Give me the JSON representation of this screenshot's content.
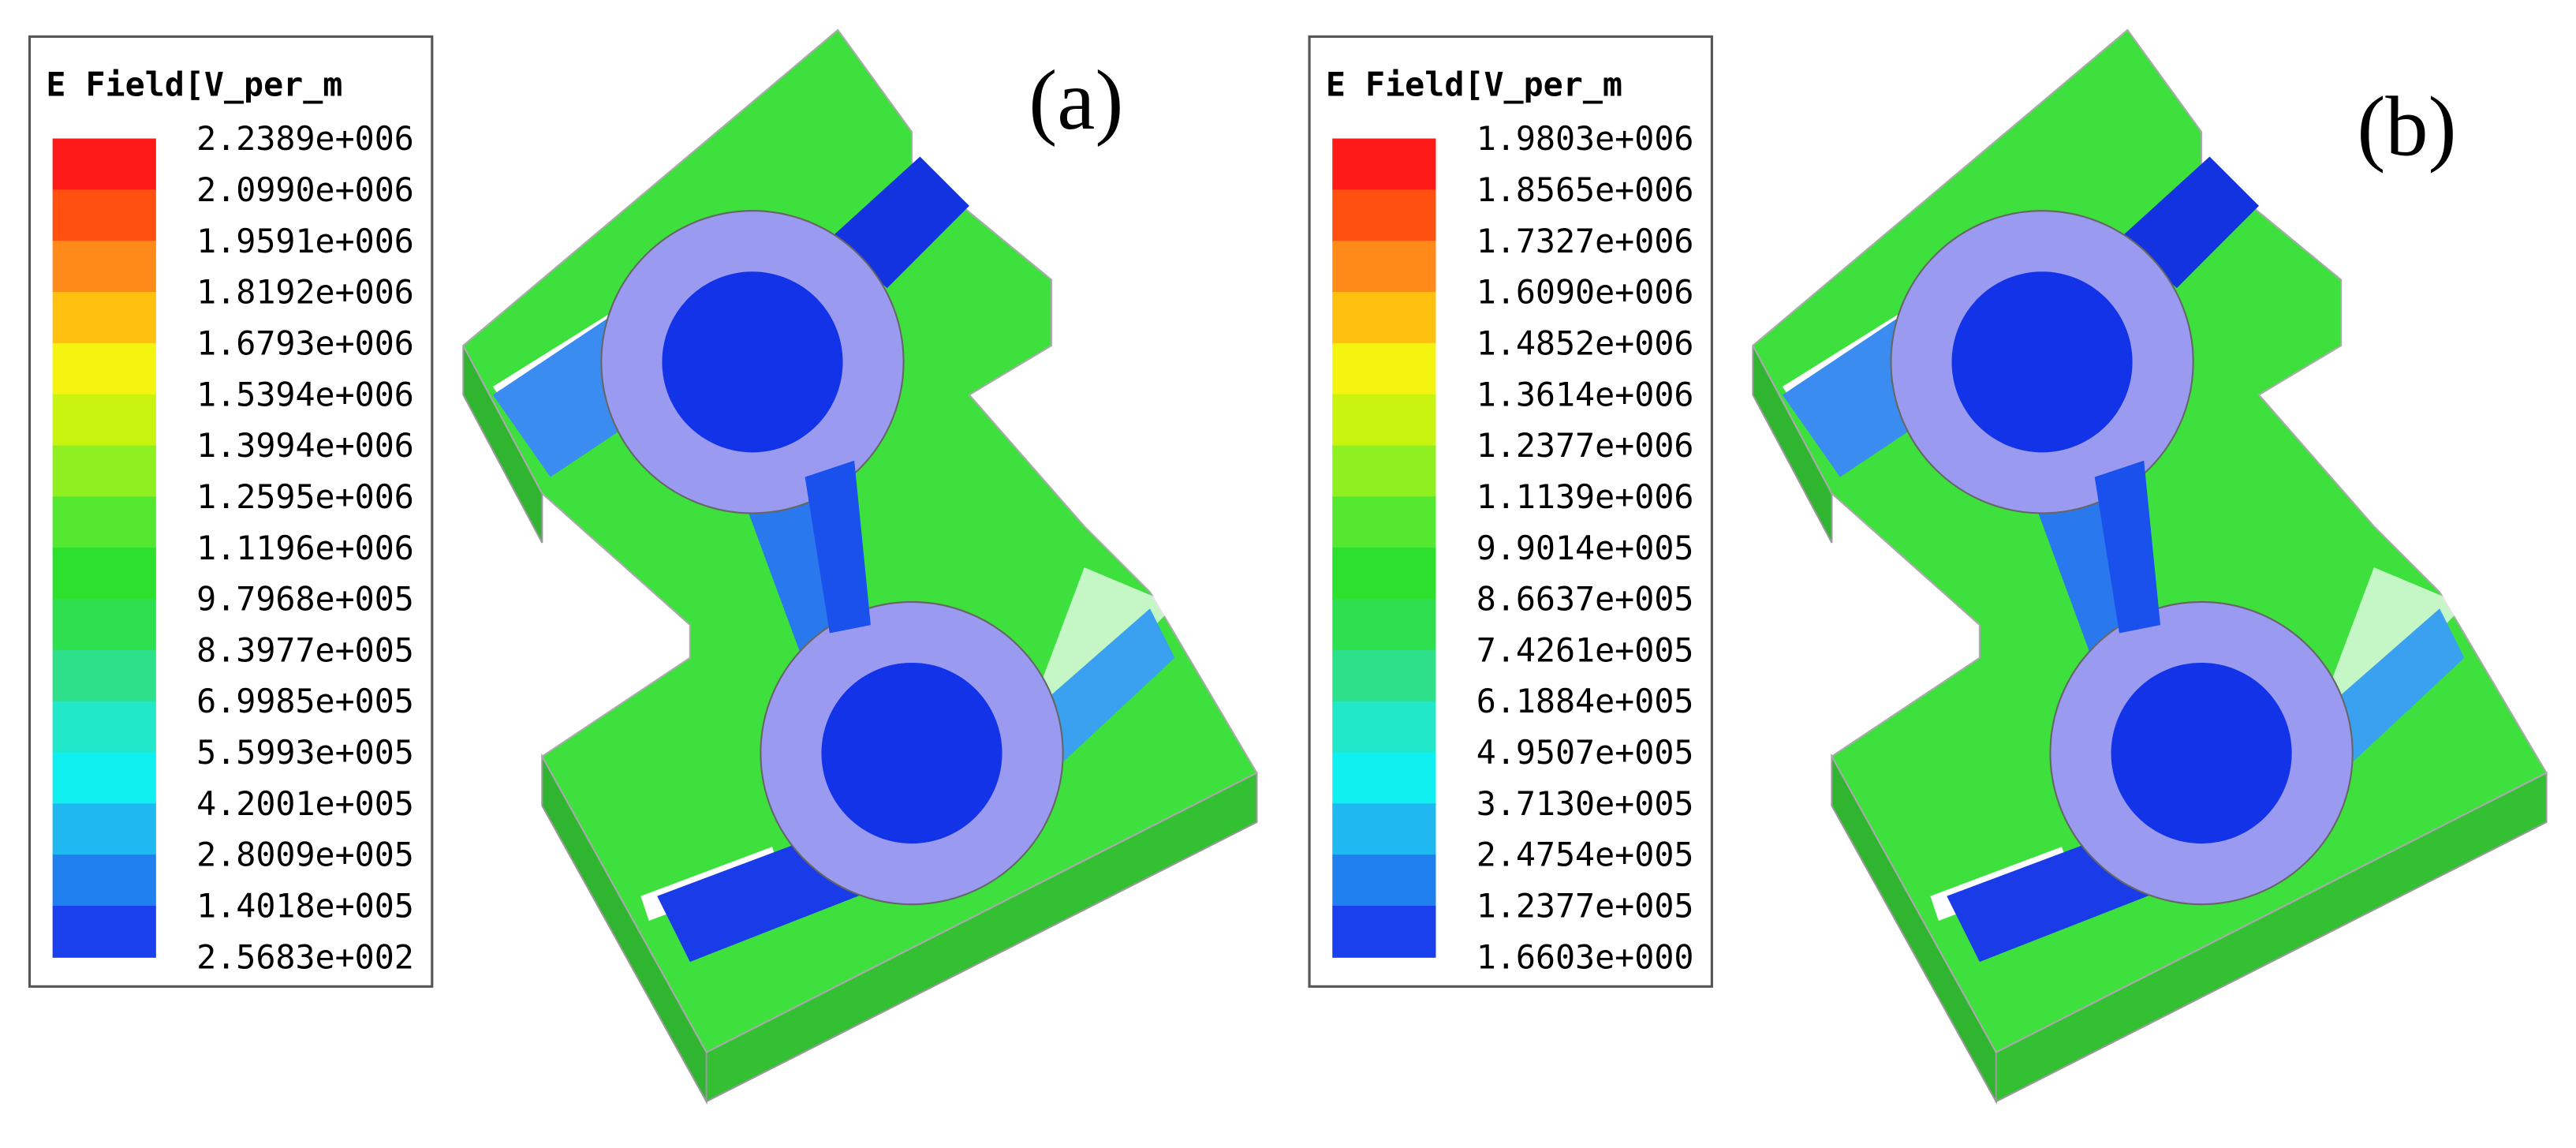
{
  "panels": [
    {
      "label": "(a)",
      "legend": {
        "title": "E Field[V_per_m",
        "labels": [
          "2.2389e+006",
          "2.0990e+006",
          "1.9591e+006",
          "1.8192e+006",
          "1.6793e+006",
          "1.5394e+006",
          "1.3994e+006",
          "1.2595e+006",
          "1.1196e+006",
          "9.7968e+005",
          "8.3977e+005",
          "6.9985e+005",
          "5.5993e+005",
          "4.2001e+005",
          "2.8009e+005",
          "1.4018e+005",
          "2.5683e+002"
        ]
      }
    },
    {
      "label": "(b)",
      "legend": {
        "title": "E Field[V_per_m",
        "labels": [
          "1.9803e+006",
          "1.8565e+006",
          "1.7327e+006",
          "1.6090e+006",
          "1.4852e+006",
          "1.3614e+006",
          "1.2377e+006",
          "1.1139e+006",
          "9.9014e+005",
          "8.6637e+005",
          "7.4261e+005",
          "6.1884e+005",
          "4.9507e+005",
          "3.7130e+005",
          "2.4754e+005",
          "1.2377e+005",
          "1.6603e+000"
        ]
      }
    }
  ]
}
